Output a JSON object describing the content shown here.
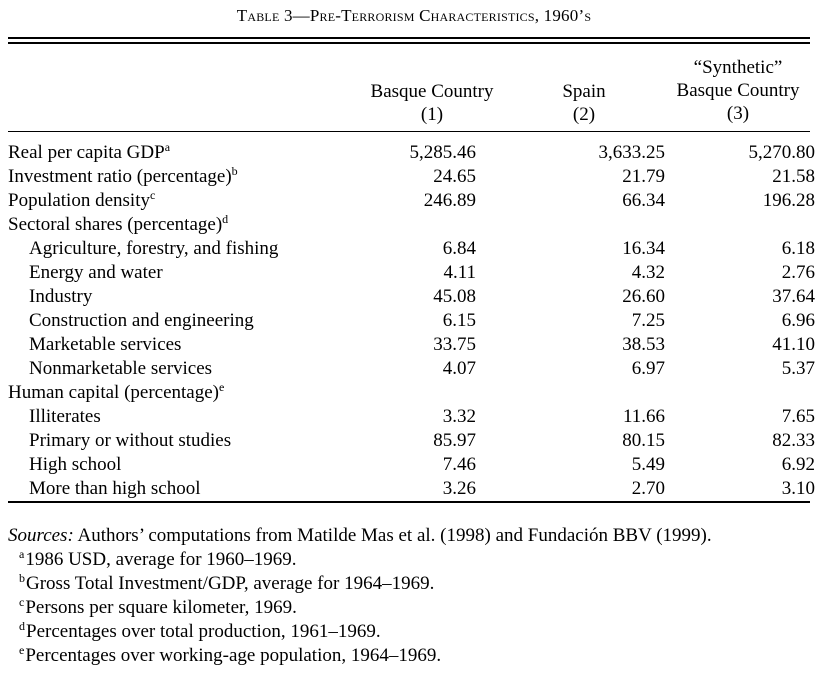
{
  "title": "Table 3—Pre-Terrorism Characteristics, 1960’s",
  "columns": [
    {
      "line1": "",
      "line2": "Basque Country",
      "num": "(1)"
    },
    {
      "line1": "",
      "line2": "Spain",
      "num": "(2)"
    },
    {
      "line1": "“Synthetic”",
      "line2": "Basque Country",
      "num": "(3)"
    }
  ],
  "rows": [
    {
      "label": "Real per capita GDP",
      "sup": "a",
      "indent": false,
      "values": [
        "5,285.46",
        "3,633.25",
        "5,270.80"
      ]
    },
    {
      "label": "Investment ratio (percentage)",
      "sup": "b",
      "indent": false,
      "values": [
        "24.65",
        "21.79",
        "21.58"
      ]
    },
    {
      "label": "Population density",
      "sup": "c",
      "indent": false,
      "values": [
        "246.89",
        "66.34",
        "196.28"
      ]
    },
    {
      "label": "Sectoral shares (percentage)",
      "sup": "d",
      "indent": false,
      "values": [
        "",
        "",
        ""
      ]
    },
    {
      "label": "Agriculture, forestry, and fishing",
      "sup": "",
      "indent": true,
      "values": [
        "6.84",
        "16.34",
        "6.18"
      ]
    },
    {
      "label": "Energy and water",
      "sup": "",
      "indent": true,
      "values": [
        "4.11",
        "4.32",
        "2.76"
      ]
    },
    {
      "label": "Industry",
      "sup": "",
      "indent": true,
      "values": [
        "45.08",
        "26.60",
        "37.64"
      ]
    },
    {
      "label": "Construction and engineering",
      "sup": "",
      "indent": true,
      "values": [
        "6.15",
        "7.25",
        "6.96"
      ]
    },
    {
      "label": "Marketable services",
      "sup": "",
      "indent": true,
      "values": [
        "33.75",
        "38.53",
        "41.10"
      ]
    },
    {
      "label": "Nonmarketable services",
      "sup": "",
      "indent": true,
      "values": [
        "4.07",
        "6.97",
        "5.37"
      ]
    },
    {
      "label": "Human capital (percentage)",
      "sup": "e",
      "indent": false,
      "values": [
        "",
        "",
        ""
      ]
    },
    {
      "label": "Illiterates",
      "sup": "",
      "indent": true,
      "values": [
        "3.32",
        "11.66",
        "7.65"
      ]
    },
    {
      "label": "Primary or without studies",
      "sup": "",
      "indent": true,
      "values": [
        "85.97",
        "80.15",
        "82.33"
      ]
    },
    {
      "label": "High school",
      "sup": "",
      "indent": true,
      "values": [
        "7.46",
        "5.49",
        "6.92"
      ]
    },
    {
      "label": "More than high school",
      "sup": "",
      "indent": true,
      "values": [
        "3.26",
        "2.70",
        "3.10"
      ]
    }
  ],
  "sources": {
    "label": "Sources:",
    "text": " Authors’ computations from Matilde Mas et al. (1998) and Fundación BBV (1999)."
  },
  "footnotes": [
    {
      "mark": "a",
      "text": "1986 USD, average for 1960–1969."
    },
    {
      "mark": "b",
      "text": "Gross Total Investment/GDP, average for 1964–1969."
    },
    {
      "mark": "c",
      "text": "Persons per square kilometer, 1969."
    },
    {
      "mark": "d",
      "text": "Percentages over total production, 1961–1969."
    },
    {
      "mark": "e",
      "text": "Percentages over working-age population, 1964–1969."
    }
  ]
}
